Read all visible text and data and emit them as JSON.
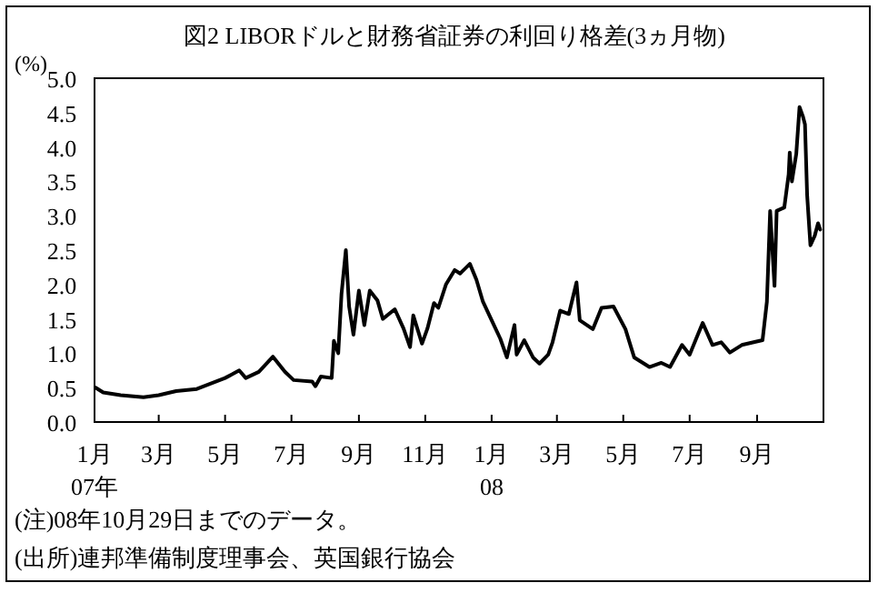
{
  "chart_data": {
    "type": "line",
    "title": "図2 LIBORドルと財務省証券の利回り格差(3ヵ月物)",
    "ylabel": "(%)",
    "annotations": [
      "(注)08年10月29日までのデータ。",
      "(出所)連邦準備制度理事会、英国銀行協会"
    ],
    "xlim": [
      "2007-01-01",
      "2008-11-01"
    ],
    "xticks": [
      {
        "value": "2007-01-01",
        "label": "1月\n07年"
      },
      {
        "value": "2007-03-01",
        "label": "3月"
      },
      {
        "value": "2007-05-01",
        "label": "5月"
      },
      {
        "value": "2007-07-01",
        "label": "7月"
      },
      {
        "value": "2007-09-01",
        "label": "9月"
      },
      {
        "value": "2007-11-01",
        "label": "11月"
      },
      {
        "value": "2008-01-01",
        "label": "1月\n08"
      },
      {
        "value": "2008-03-01",
        "label": "3月"
      },
      {
        "value": "2008-05-01",
        "label": "5月"
      },
      {
        "value": "2008-07-01",
        "label": "7月"
      },
      {
        "value": "2008-09-01",
        "label": "9月"
      }
    ],
    "ylim": [
      0,
      5
    ],
    "yticks": [
      {
        "value": 0,
        "label": "0.0"
      },
      {
        "value": 0.5,
        "label": "0.5"
      },
      {
        "value": 1,
        "label": "1.0"
      },
      {
        "value": 1.5,
        "label": "1.5"
      },
      {
        "value": 2,
        "label": "2.0"
      },
      {
        "value": 2.5,
        "label": "2.5"
      },
      {
        "value": 3,
        "label": "3.0"
      },
      {
        "value": 3.5,
        "label": "3.5"
      },
      {
        "value": 4,
        "label": "4.0"
      },
      {
        "value": 4.5,
        "label": "4.5"
      },
      {
        "value": 5,
        "label": "5.0"
      }
    ],
    "x": [
      "2007-01-02",
      "2007-01-09",
      "2007-01-25",
      "2007-02-15",
      "2007-03-01",
      "2007-03-17",
      "2007-04-05",
      "2007-05-01",
      "2007-05-14",
      "2007-05-20",
      "2007-06-01",
      "2007-06-14",
      "2007-06-25",
      "2007-07-03",
      "2007-07-20",
      "2007-07-23",
      "2007-07-28",
      "2007-08-07",
      "2007-08-09",
      "2007-08-13",
      "2007-08-16",
      "2007-08-20",
      "2007-08-23",
      "2007-08-27",
      "2007-09-01",
      "2007-09-06",
      "2007-09-11",
      "2007-09-18",
      "2007-09-23",
      "2007-10-04",
      "2007-10-12",
      "2007-10-18",
      "2007-10-21",
      "2007-10-29",
      "2007-11-03",
      "2007-11-09",
      "2007-11-13",
      "2007-11-20",
      "2007-11-28",
      "2007-12-03",
      "2007-12-12",
      "2007-12-18",
      "2007-12-24",
      "2008-01-01",
      "2008-01-09",
      "2008-01-15",
      "2008-01-22",
      "2008-01-24",
      "2008-01-31",
      "2008-02-08",
      "2008-02-14",
      "2008-02-22",
      "2008-02-26",
      "2008-03-04",
      "2008-03-12",
      "2008-03-19",
      "2008-03-22",
      "2008-04-03",
      "2008-04-11",
      "2008-04-22",
      "2008-05-03",
      "2008-05-11",
      "2008-05-25",
      "2008-06-05",
      "2008-06-13",
      "2008-06-24",
      "2008-07-01",
      "2008-07-08",
      "2008-07-13",
      "2008-07-22",
      "2008-07-30",
      "2008-08-07",
      "2008-08-18",
      "2008-09-06",
      "2008-09-10",
      "2008-09-13",
      "2008-09-17",
      "2008-09-19",
      "2008-09-26",
      "2008-09-30",
      "2008-10-01",
      "2008-10-03",
      "2008-10-07",
      "2008-10-10",
      "2008-10-13",
      "2008-10-15",
      "2008-10-17",
      "2008-10-20",
      "2008-10-24",
      "2008-10-27",
      "2008-10-29"
    ],
    "series": [
      {
        "color": "#000000",
        "values": [
          0.5,
          0.43,
          0.39,
          0.36,
          0.39,
          0.45,
          0.48,
          0.64,
          0.75,
          0.64,
          0.73,
          0.95,
          0.73,
          0.61,
          0.59,
          0.52,
          0.66,
          0.64,
          1.18,
          1.0,
          1.86,
          2.5,
          1.68,
          1.27,
          1.91,
          1.41,
          1.91,
          1.77,
          1.5,
          1.64,
          1.36,
          1.09,
          1.55,
          1.14,
          1.36,
          1.73,
          1.66,
          2.0,
          2.21,
          2.16,
          2.3,
          2.07,
          1.75,
          1.48,
          1.21,
          0.94,
          1.41,
          0.98,
          1.19,
          0.94,
          0.85,
          0.98,
          1.16,
          1.62,
          1.57,
          2.03,
          1.48,
          1.35,
          1.66,
          1.68,
          1.35,
          0.94,
          0.8,
          0.86,
          0.8,
          1.12,
          0.98,
          1.25,
          1.44,
          1.12,
          1.16,
          1.01,
          1.12,
          1.19,
          1.75,
          3.07,
          1.98,
          3.07,
          3.12,
          3.6,
          3.92,
          3.5,
          3.9,
          4.58,
          4.45,
          4.33,
          3.3,
          2.57,
          2.71,
          2.89,
          2.8
        ]
      }
    ]
  }
}
